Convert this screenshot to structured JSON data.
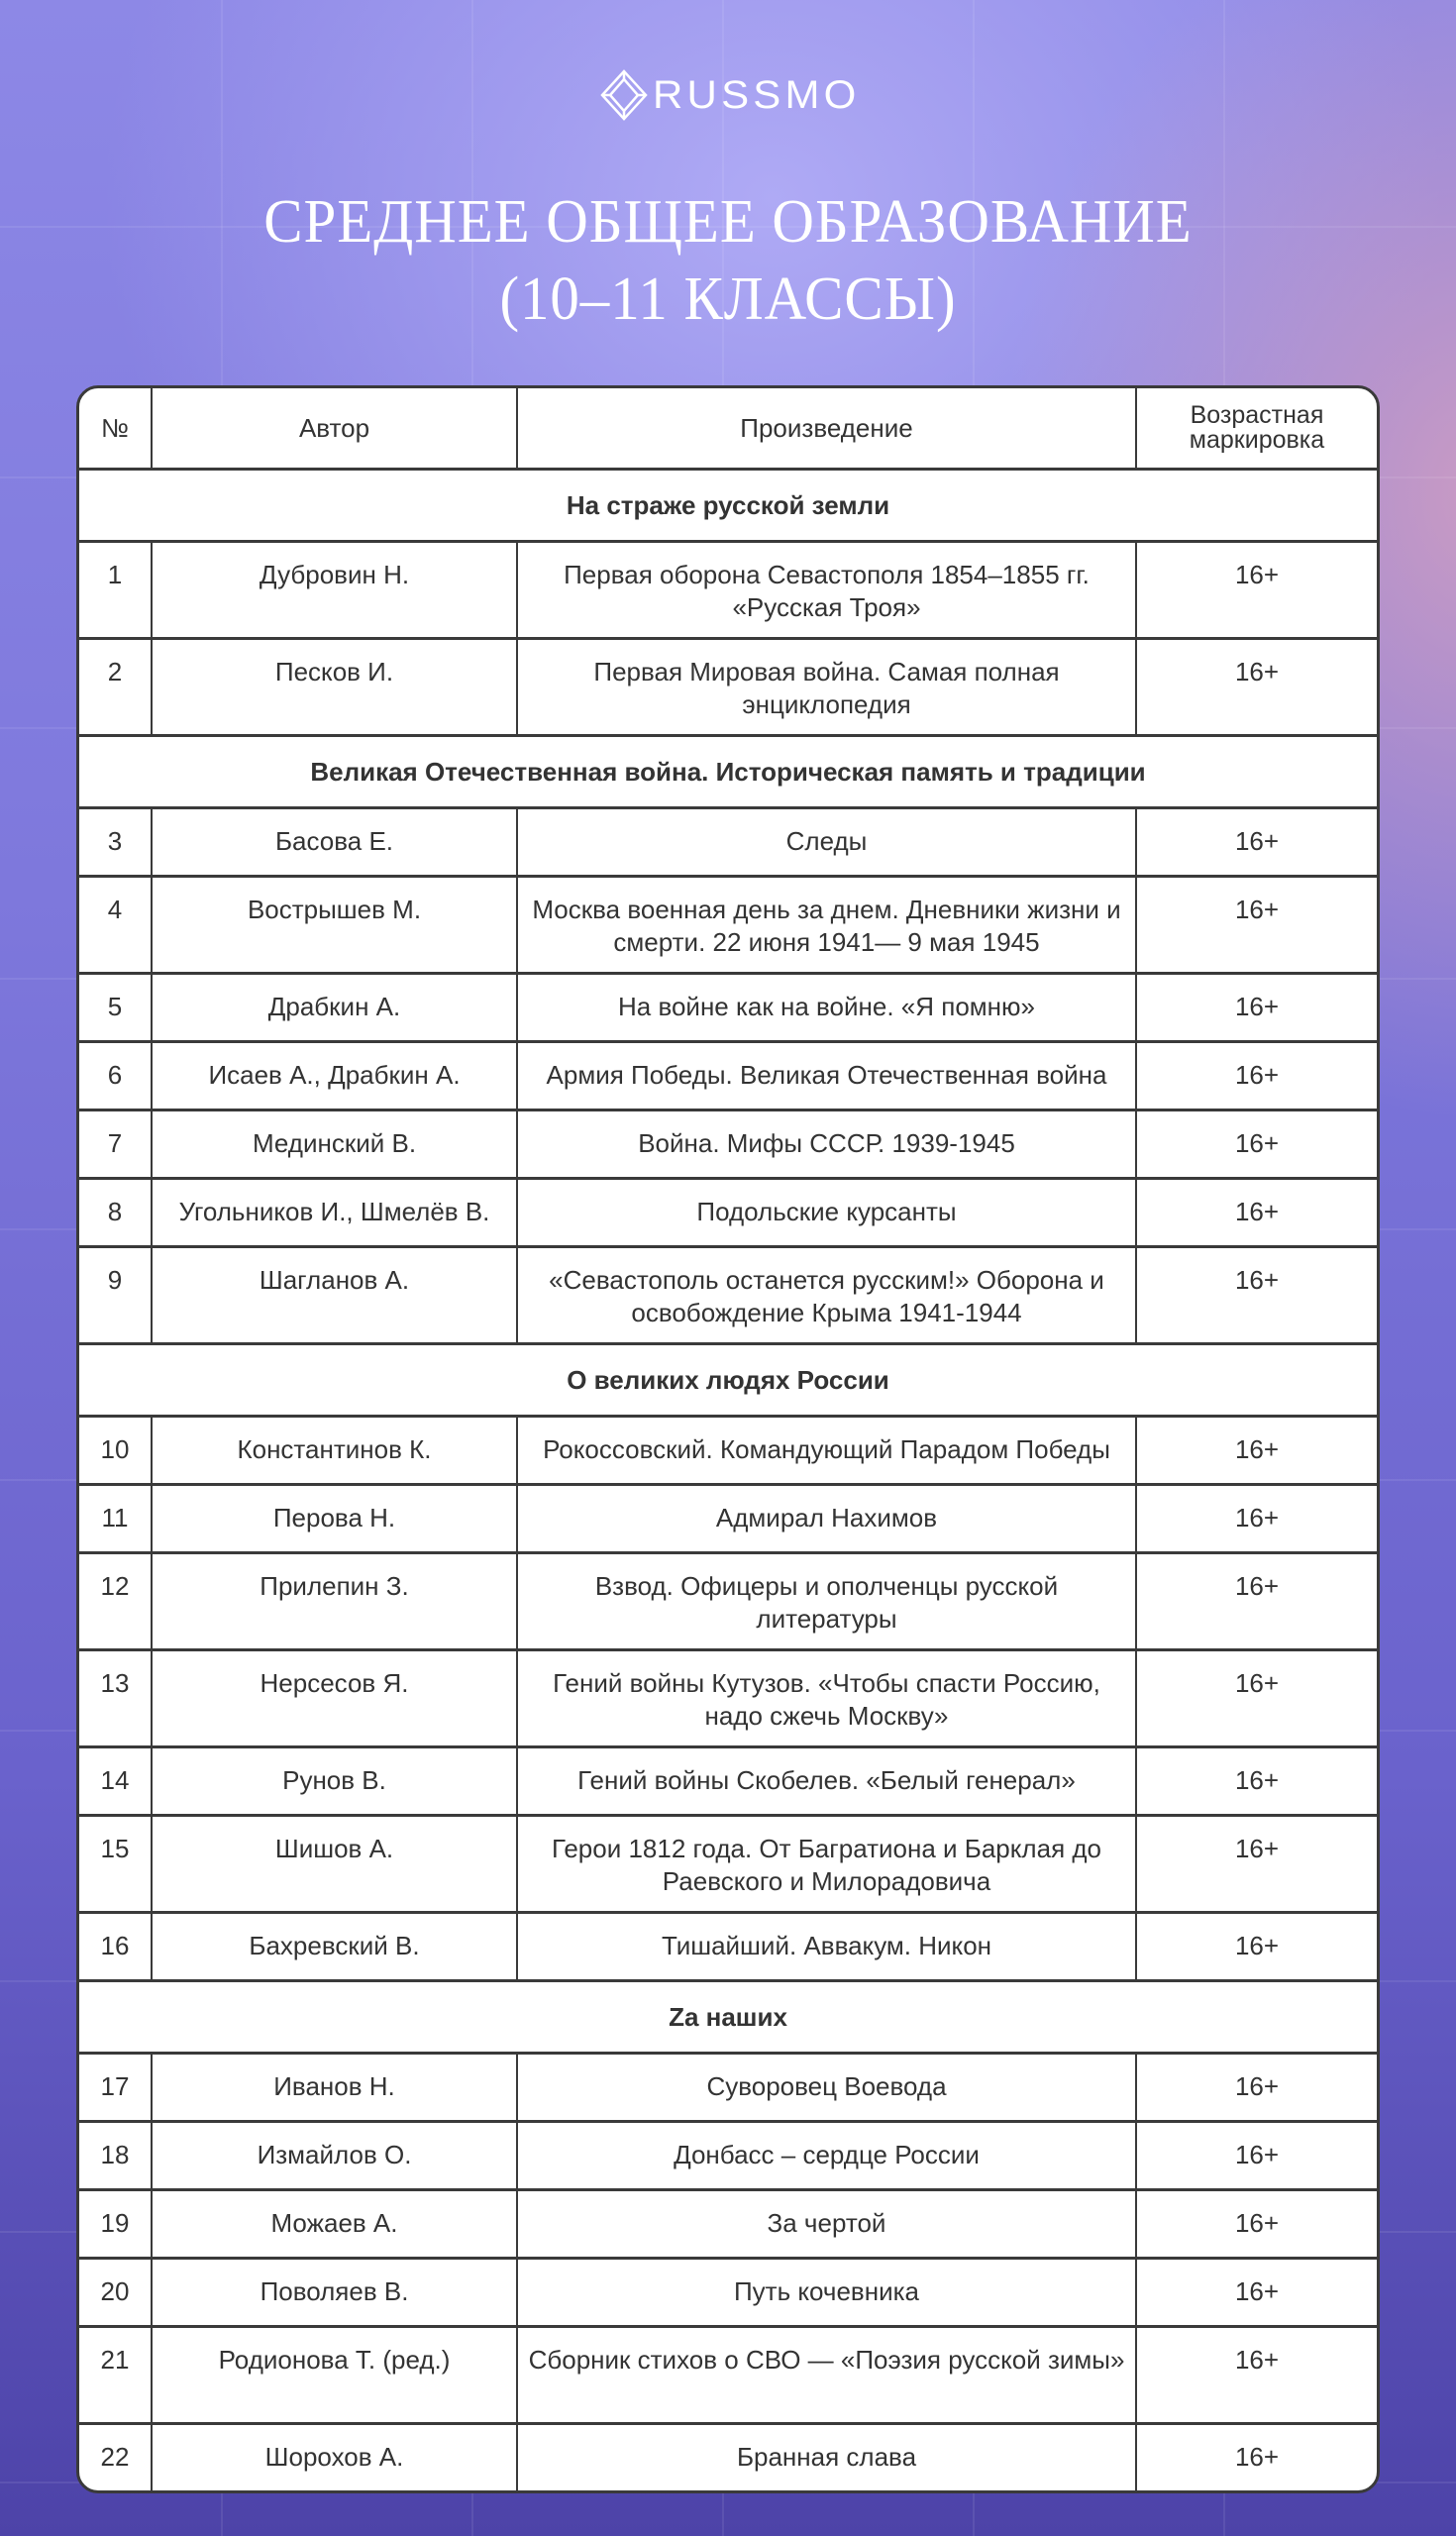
{
  "brand": "RUSSMO",
  "title": [
    "СРЕДНЕЕ ОБЩЕЕ ОБРАЗОВАНИЕ",
    "(10–11 КЛАССЫ)"
  ],
  "headers": [
    "№",
    "Автор",
    "Произведение",
    "Возрастная маркировка"
  ],
  "sections": [
    {
      "title": "На страже русской земли",
      "rows": [
        [
          "1",
          "Дубровин Н.",
          "Первая оборона Севастополя 1854–1855 гг. «Русская Троя»",
          "16+"
        ],
        [
          "2",
          "Песков И.",
          "Первая Мировая война. Самая полная энциклопедия",
          "16+"
        ]
      ]
    },
    {
      "title": "Великая Отечественная война. Историческая память и традиции",
      "rows": [
        [
          "3",
          "Басова Е.",
          "Следы",
          "16+"
        ],
        [
          "4",
          "Вострышев М.",
          "Москва военная день за днем. Дневники жизни и смерти. 22 июня 1941— 9 мая 1945",
          "16+"
        ],
        [
          "5",
          "Драбкин А.",
          "На войне как на войне. «Я помню»",
          "16+"
        ],
        [
          "6",
          "Исаев А., Драбкин А.",
          "Армия Победы. Великая Отечественная война",
          "16+"
        ],
        [
          "7",
          "Мединский В.",
          "Война. Мифы СССР. 1939-1945",
          "16+"
        ],
        [
          "8",
          "Угольников И., Шмелёв В.",
          "Подольские курсанты",
          "16+"
        ],
        [
          "9",
          "Шагланов А.",
          "«Севастополь останется русским!» Оборона и освобождение Крыма 1941-1944",
          "16+"
        ]
      ]
    },
    {
      "title": "О великих людях России",
      "rows": [
        [
          "10",
          "Константинов К.",
          "Рокоссовский. Командующий Парадом Победы",
          "16+"
        ],
        [
          "11",
          "Перова Н.",
          "Адмирал Нахимов",
          "16+"
        ],
        [
          "12",
          "Прилепин З.",
          "Взвод. Офицеры и ополченцы русской литературы",
          "16+"
        ],
        [
          "13",
          "Нерсесов Я.",
          "Гений войны Кутузов. «Чтобы спасти Россию, надо сжечь Москву»",
          "16+"
        ],
        [
          "14",
          "Рунов В.",
          "Гений войны Скобелев. «Белый генерал»",
          "16+"
        ],
        [
          "15",
          "Шишов А.",
          "Герои 1812 года. От Багратиона и Барклая до Раевского и Милорадовича",
          "16+"
        ],
        [
          "16",
          "Бахревский В.",
          "Тишайший. Аввакум. Никон",
          "16+"
        ]
      ]
    },
    {
      "title": "Zа наших",
      "rows": [
        [
          "17",
          "Иванов Н.",
          "Суворовец Воевода",
          "16+"
        ],
        [
          "18",
          "Измайлов О.",
          "Донбасс – сердце России",
          "16+"
        ],
        [
          "19",
          "Можаев А.",
          "За чертой",
          "16+"
        ],
        [
          "20",
          "Поволяев В.",
          "Путь кочевника",
          "16+"
        ],
        [
          "21",
          "Родионова Т. (ред.)",
          "Сборник стихов о СВО — «Поэзия русской зимы»",
          "16+"
        ],
        [
          "22",
          "Шорохов А.",
          "Бранная слава",
          "16+"
        ]
      ]
    }
  ]
}
